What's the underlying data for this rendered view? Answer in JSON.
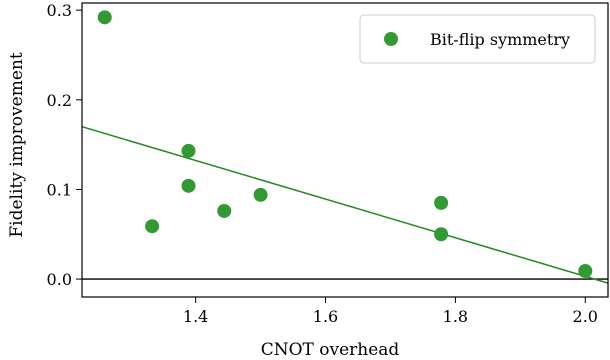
{
  "chart_data": {
    "type": "scatter",
    "xlabel": "CNOT overhead",
    "ylabel": "Fidelity improvement",
    "xlim": [
      1.225,
      2.035
    ],
    "ylim": [
      -0.02,
      0.308
    ],
    "x_ticks": [
      1.4,
      1.6,
      1.8,
      2.0
    ],
    "x_tick_labels": [
      "1.4",
      "1.6",
      "1.8",
      "2.0"
    ],
    "y_ticks": [
      0.0,
      0.1,
      0.2,
      0.3
    ],
    "y_tick_labels": [
      "0.0",
      "0.1",
      "0.2",
      "0.3"
    ],
    "grid": false,
    "legend_position": "top-right",
    "zero_line": true,
    "series": [
      {
        "name": "Bit-flip symmetry",
        "color": "#339933",
        "points": [
          {
            "x": 1.26,
            "y": 0.292
          },
          {
            "x": 1.333,
            "y": 0.059
          },
          {
            "x": 1.389,
            "y": 0.143
          },
          {
            "x": 1.389,
            "y": 0.104
          },
          {
            "x": 1.444,
            "y": 0.076
          },
          {
            "x": 1.5,
            "y": 0.094
          },
          {
            "x": 1.778,
            "y": 0.085
          },
          {
            "x": 1.778,
            "y": 0.05
          },
          {
            "x": 2.0,
            "y": 0.009
          }
        ]
      }
    ],
    "fit_line": {
      "color": "#228822",
      "x": [
        1.225,
        2.035
      ],
      "y": [
        0.17,
        -0.0045
      ]
    }
  }
}
